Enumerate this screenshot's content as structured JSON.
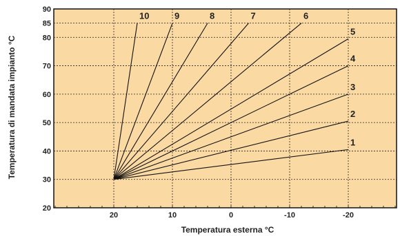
{
  "chart_data": {
    "type": "line",
    "xlabel": "Temperatura esterna °C",
    "ylabel": "Temperatura di mandata impianto °C",
    "x_ticks": [
      20,
      10,
      0,
      -10,
      -20
    ],
    "y_ticks": [
      20,
      30,
      40,
      50,
      60,
      70,
      80,
      85,
      90
    ],
    "xlim": [
      30,
      -30
    ],
    "ylim": [
      20,
      90
    ],
    "grid": true,
    "colors": {
      "background": "#fbd9a3",
      "line": "#111111",
      "grid": "#222222"
    },
    "origin": {
      "x": 20,
      "y": 30
    },
    "series": [
      {
        "name": "1",
        "x": [
          20,
          -20
        ],
        "y": [
          30,
          40.5
        ]
      },
      {
        "name": "2",
        "x": [
          20,
          -20
        ],
        "y": [
          30,
          50.5
        ]
      },
      {
        "name": "3",
        "x": [
          20,
          -20
        ],
        "y": [
          30,
          60
        ]
      },
      {
        "name": "4",
        "x": [
          20,
          -20
        ],
        "y": [
          30,
          70
        ]
      },
      {
        "name": "5",
        "x": [
          20,
          -20
        ],
        "y": [
          30,
          79.5
        ]
      },
      {
        "name": "6",
        "x": [
          20,
          -12
        ],
        "y": [
          30,
          85
        ]
      },
      {
        "name": "7",
        "x": [
          20,
          -3
        ],
        "y": [
          30,
          85
        ]
      },
      {
        "name": "8",
        "x": [
          20,
          4
        ],
        "y": [
          30,
          85
        ]
      },
      {
        "name": "9",
        "x": [
          20,
          10
        ],
        "y": [
          30,
          85
        ]
      },
      {
        "name": "10",
        "x": [
          20,
          16
        ],
        "y": [
          30,
          85
        ]
      }
    ]
  }
}
